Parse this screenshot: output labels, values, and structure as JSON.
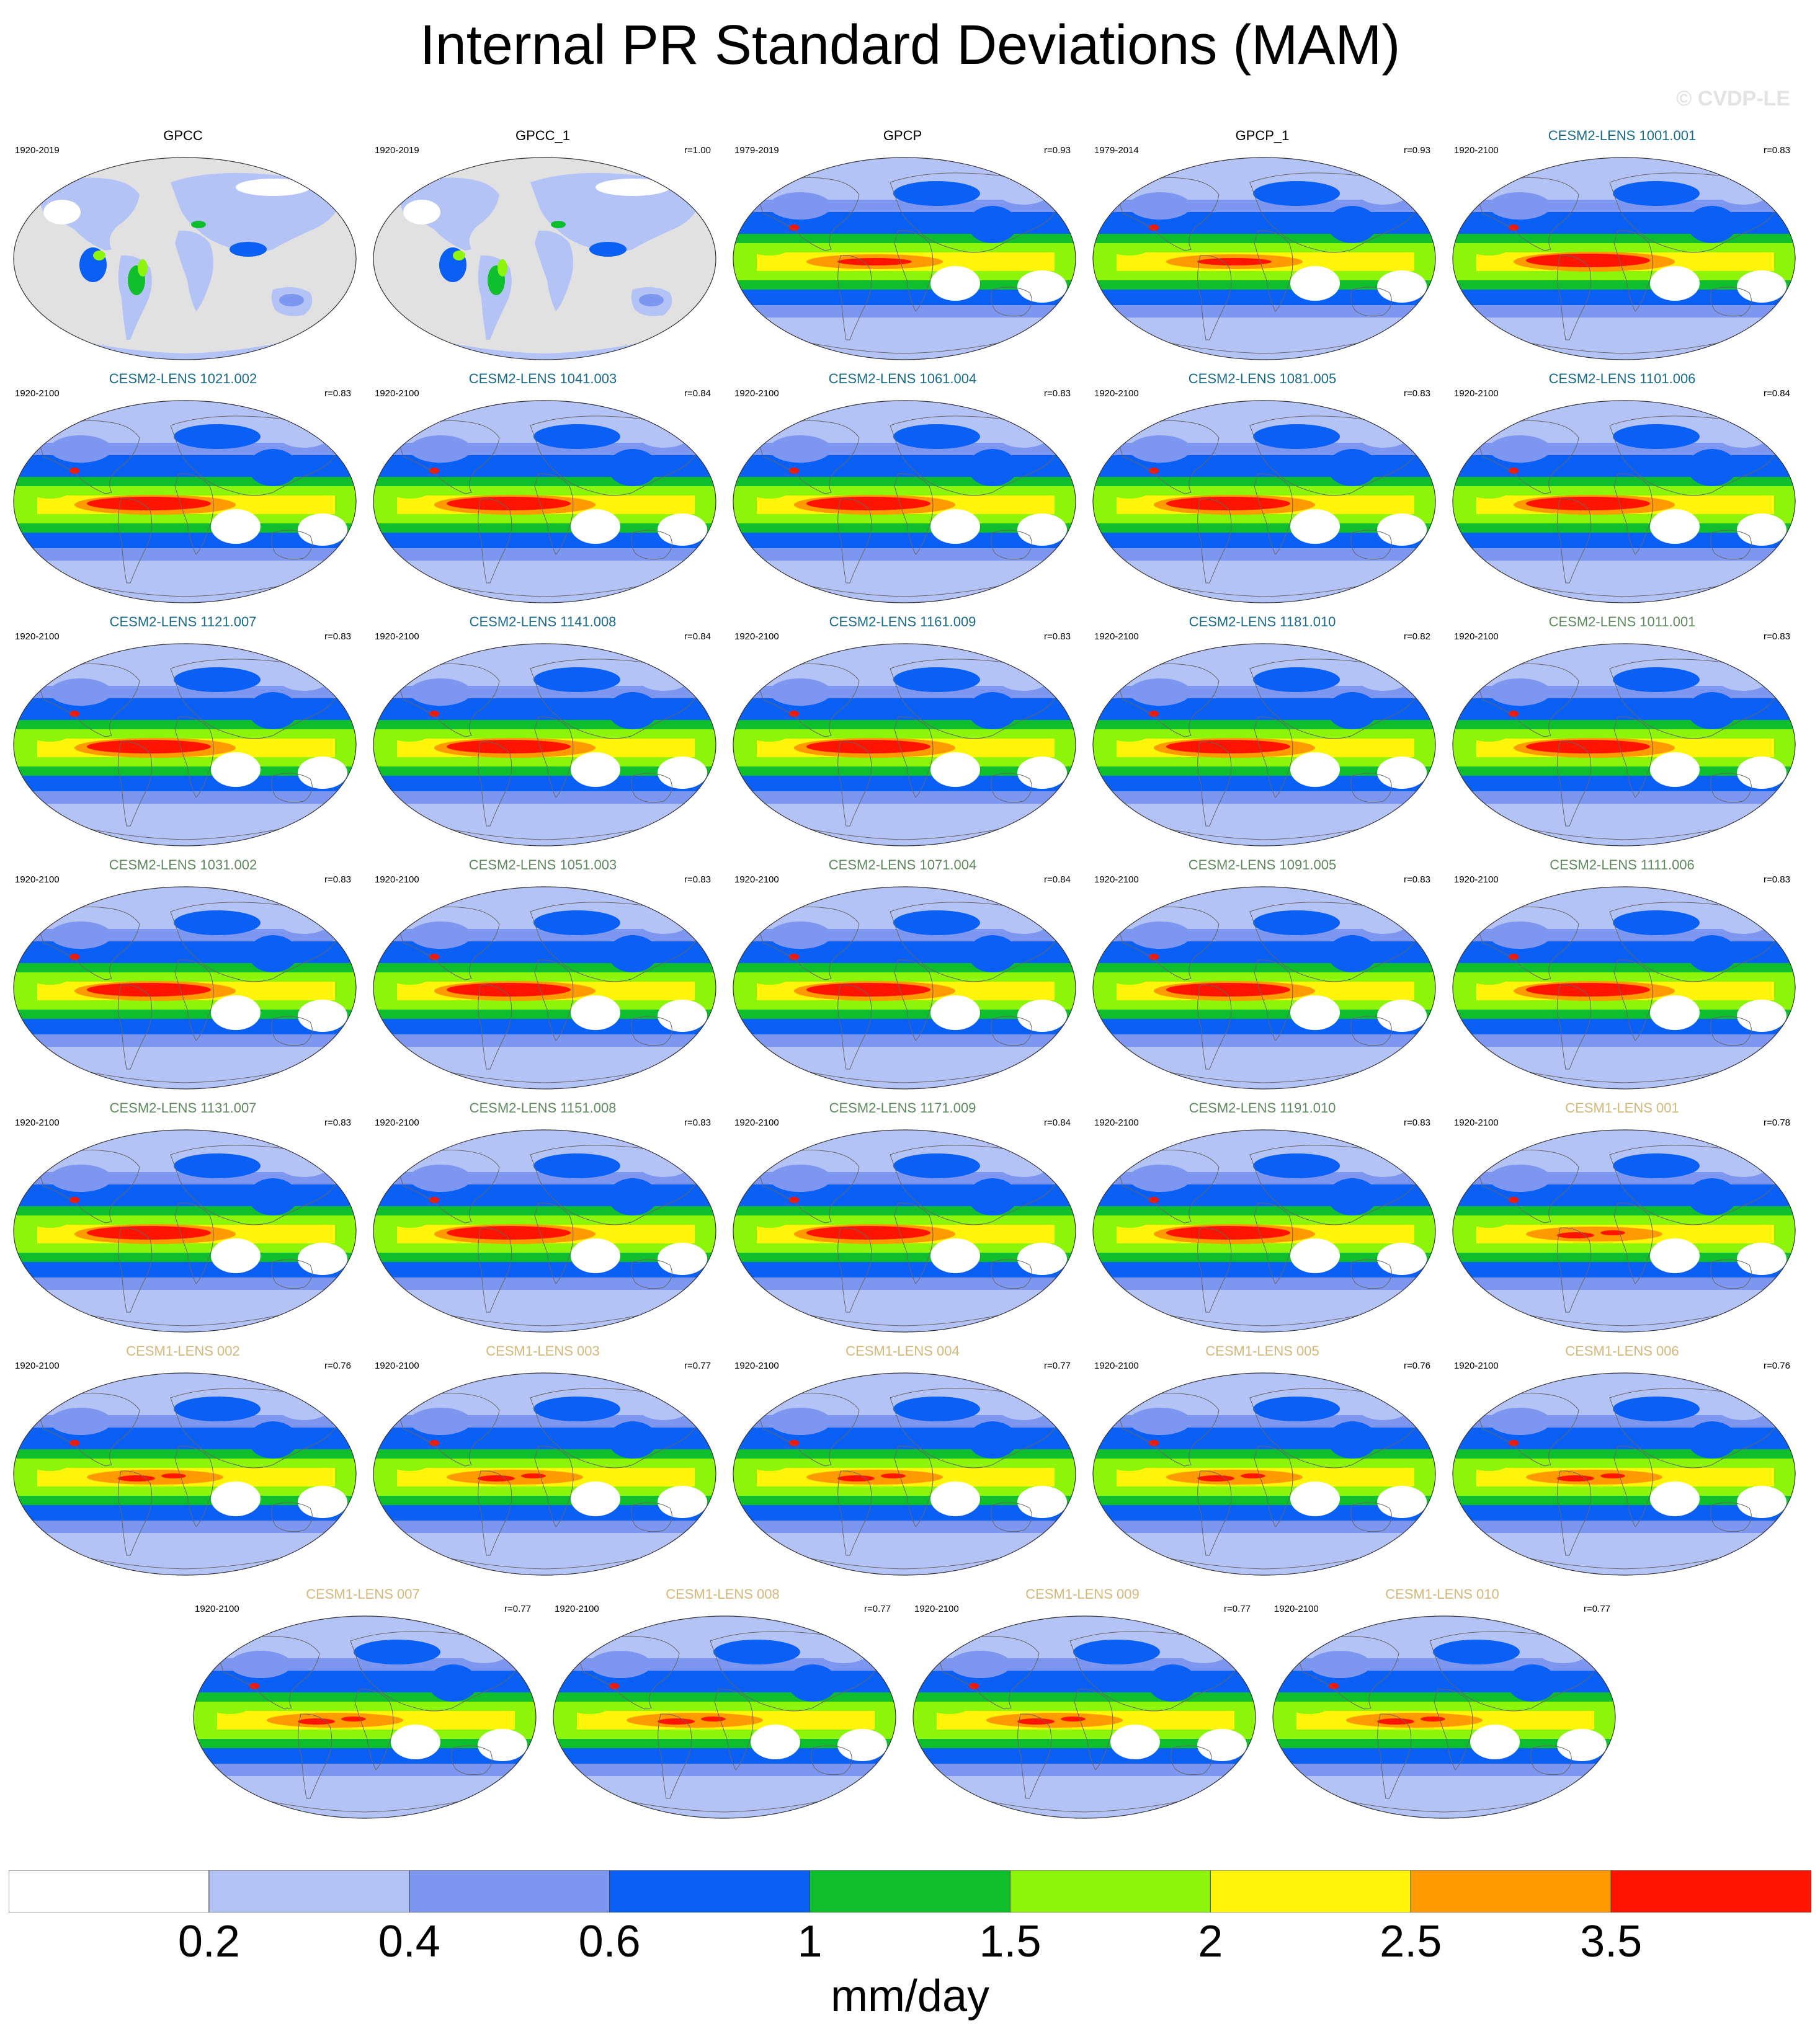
{
  "title": "Internal PR Standard Deviations (MAM)",
  "watermark": "© CVDP-LE",
  "title_colors": {
    "obs": "#000000",
    "cesm2_micro": "#1a6a8c",
    "cesm2_smbb": "#5f8a5f",
    "cesm1": "#d4b87a"
  },
  "panels": [
    {
      "title": "GPCC",
      "years": "1920-2019",
      "r": "",
      "group": "obs",
      "map": "obs_land"
    },
    {
      "title": "GPCC_1",
      "years": "1920-2019",
      "r": "r=1.00",
      "group": "obs",
      "map": "obs_land"
    },
    {
      "title": "GPCP",
      "years": "1979-2019",
      "r": "r=0.93",
      "group": "obs",
      "map": "gpcp"
    },
    {
      "title": "GPCP_1",
      "years": "1979-2014",
      "r": "r=0.93",
      "group": "obs",
      "map": "gpcp"
    },
    {
      "title": "CESM2-LENS 1001.001",
      "years": "1920-2100",
      "r": "r=0.83",
      "group": "cesm2_micro",
      "map": "cesm2"
    },
    {
      "title": "CESM2-LENS 1021.002",
      "years": "1920-2100",
      "r": "r=0.83",
      "group": "cesm2_micro",
      "map": "cesm2"
    },
    {
      "title": "CESM2-LENS 1041.003",
      "years": "1920-2100",
      "r": "r=0.84",
      "group": "cesm2_micro",
      "map": "cesm2"
    },
    {
      "title": "CESM2-LENS 1061.004",
      "years": "1920-2100",
      "r": "r=0.83",
      "group": "cesm2_micro",
      "map": "cesm2"
    },
    {
      "title": "CESM2-LENS 1081.005",
      "years": "1920-2100",
      "r": "r=0.83",
      "group": "cesm2_micro",
      "map": "cesm2"
    },
    {
      "title": "CESM2-LENS 1101.006",
      "years": "1920-2100",
      "r": "r=0.84",
      "group": "cesm2_micro",
      "map": "cesm2"
    },
    {
      "title": "CESM2-LENS 1121.007",
      "years": "1920-2100",
      "r": "r=0.83",
      "group": "cesm2_micro",
      "map": "cesm2"
    },
    {
      "title": "CESM2-LENS 1141.008",
      "years": "1920-2100",
      "r": "r=0.84",
      "group": "cesm2_micro",
      "map": "cesm2"
    },
    {
      "title": "CESM2-LENS 1161.009",
      "years": "1920-2100",
      "r": "r=0.83",
      "group": "cesm2_micro",
      "map": "cesm2"
    },
    {
      "title": "CESM2-LENS 1181.010",
      "years": "1920-2100",
      "r": "r=0.82",
      "group": "cesm2_micro",
      "map": "cesm2"
    },
    {
      "title": "CESM2-LENS 1011.001",
      "years": "1920-2100",
      "r": "r=0.83",
      "group": "cesm2_smbb",
      "map": "cesm2"
    },
    {
      "title": "CESM2-LENS 1031.002",
      "years": "1920-2100",
      "r": "r=0.83",
      "group": "cesm2_smbb",
      "map": "cesm2"
    },
    {
      "title": "CESM2-LENS 1051.003",
      "years": "1920-2100",
      "r": "r=0.83",
      "group": "cesm2_smbb",
      "map": "cesm2"
    },
    {
      "title": "CESM2-LENS 1071.004",
      "years": "1920-2100",
      "r": "r=0.84",
      "group": "cesm2_smbb",
      "map": "cesm2"
    },
    {
      "title": "CESM2-LENS 1091.005",
      "years": "1920-2100",
      "r": "r=0.83",
      "group": "cesm2_smbb",
      "map": "cesm2"
    },
    {
      "title": "CESM2-LENS 1111.006",
      "years": "1920-2100",
      "r": "r=0.83",
      "group": "cesm2_smbb",
      "map": "cesm2"
    },
    {
      "title": "CESM2-LENS 1131.007",
      "years": "1920-2100",
      "r": "r=0.83",
      "group": "cesm2_smbb",
      "map": "cesm2"
    },
    {
      "title": "CESM2-LENS 1151.008",
      "years": "1920-2100",
      "r": "r=0.83",
      "group": "cesm2_smbb",
      "map": "cesm2"
    },
    {
      "title": "CESM2-LENS 1171.009",
      "years": "1920-2100",
      "r": "r=0.84",
      "group": "cesm2_smbb",
      "map": "cesm2"
    },
    {
      "title": "CESM2-LENS 1191.010",
      "years": "1920-2100",
      "r": "r=0.83",
      "group": "cesm2_smbb",
      "map": "cesm2"
    },
    {
      "title": "CESM1-LENS 001",
      "years": "1920-2100",
      "r": "r=0.78",
      "group": "cesm1",
      "map": "cesm1"
    },
    {
      "title": "CESM1-LENS 002",
      "years": "1920-2100",
      "r": "r=0.76",
      "group": "cesm1",
      "map": "cesm1"
    },
    {
      "title": "CESM1-LENS 003",
      "years": "1920-2100",
      "r": "r=0.77",
      "group": "cesm1",
      "map": "cesm1"
    },
    {
      "title": "CESM1-LENS 004",
      "years": "1920-2100",
      "r": "r=0.77",
      "group": "cesm1",
      "map": "cesm1"
    },
    {
      "title": "CESM1-LENS 005",
      "years": "1920-2100",
      "r": "r=0.76",
      "group": "cesm1",
      "map": "cesm1"
    },
    {
      "title": "CESM1-LENS 006",
      "years": "1920-2100",
      "r": "r=0.76",
      "group": "cesm1",
      "map": "cesm1"
    },
    {
      "title": "CESM1-LENS 007",
      "years": "1920-2100",
      "r": "r=0.77",
      "group": "cesm1",
      "map": "cesm1"
    },
    {
      "title": "CESM1-LENS 008",
      "years": "1920-2100",
      "r": "r=0.77",
      "group": "cesm1",
      "map": "cesm1"
    },
    {
      "title": "CESM1-LENS 009",
      "years": "1920-2100",
      "r": "r=0.77",
      "group": "cesm1",
      "map": "cesm1"
    },
    {
      "title": "CESM1-LENS 010",
      "years": "1920-2100",
      "r": "r=0.77",
      "group": "cesm1",
      "map": "cesm1"
    }
  ],
  "colorbar": {
    "colors": [
      "#ffffff",
      "#b4c3f5",
      "#7d96ef",
      "#0a5ff5",
      "#0fbe2d",
      "#8cf50a",
      "#fff50a",
      "#ff9b00",
      "#ff1400"
    ],
    "labels": [
      "0.2",
      "0.4",
      "0.6",
      "1",
      "1.5",
      "2",
      "2.5",
      "3.5"
    ],
    "units": "mm/day"
  }
}
